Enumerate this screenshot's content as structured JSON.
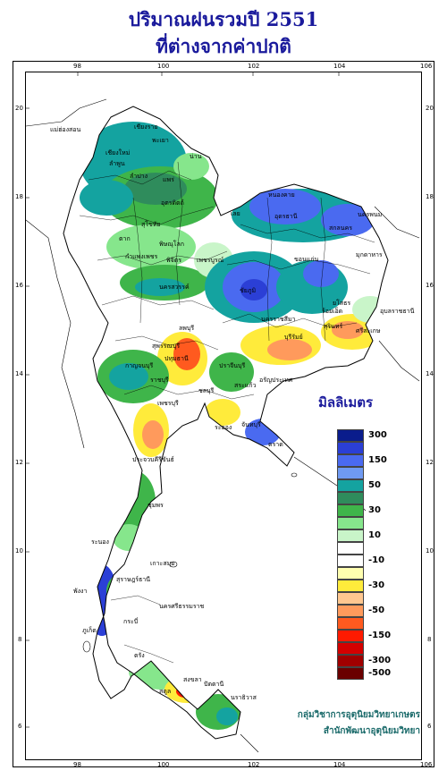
{
  "title_line1": "ปริมาณฝนรวมปี  2551",
  "title_line2": "ที่ต่างจากค่าปกติ",
  "legend": {
    "title": "มิลลิเมตร",
    "items": [
      {
        "color": "#0a1c8c",
        "label": "300"
      },
      {
        "color": "#2b3fd6",
        "label": ""
      },
      {
        "color": "#4a6af0",
        "label": "150"
      },
      {
        "color": "#6f9af2",
        "label": ""
      },
      {
        "color": "#14a3a0",
        "label": "50"
      },
      {
        "color": "#2f8c5c",
        "label": ""
      },
      {
        "color": "#3fb54a",
        "label": "30"
      },
      {
        "color": "#86e68c",
        "label": ""
      },
      {
        "color": "#c9f5c9",
        "label": "10"
      },
      {
        "color": "#ffffff",
        "label": ""
      },
      {
        "color": "#ffffff",
        "label": "-10"
      },
      {
        "color": "#ffffb0",
        "label": ""
      },
      {
        "color": "#ffeb3b",
        "label": "-30"
      },
      {
        "color": "#ffc790",
        "label": ""
      },
      {
        "color": "#ff9a5c",
        "label": "-50"
      },
      {
        "color": "#ff5a1f",
        "label": ""
      },
      {
        "color": "#ff1a00",
        "label": "-150"
      },
      {
        "color": "#d40000",
        "label": ""
      },
      {
        "color": "#a00000",
        "label": "-300"
      },
      {
        "color": "#6a0000",
        "label": "-500"
      }
    ]
  },
  "axes": {
    "x_ticks": [
      "98",
      "100",
      "102",
      "104",
      "106"
    ],
    "y_ticks": [
      "20",
      "18",
      "16",
      "14",
      "12",
      "10",
      "8",
      "6"
    ]
  },
  "credit_line1": "กลุ่มวิชาการอุตุนิยมวิทยาเกษตร",
  "credit_line2": "สำนักพัฒนาอุตุนิยมวิทยา",
  "places": [
    {
      "name": "เชียงราย"
    },
    {
      "name": "แม่ฮ่องสอน"
    },
    {
      "name": "เชียงใหม่"
    },
    {
      "name": "พะเยา"
    },
    {
      "name": "น่าน"
    },
    {
      "name": "ลำพูน"
    },
    {
      "name": "ลำปาง"
    },
    {
      "name": "แพร่"
    },
    {
      "name": "อุตรดิตถ์"
    },
    {
      "name": "ตาก"
    },
    {
      "name": "สุโขทัย"
    },
    {
      "name": "พิษณุโลก"
    },
    {
      "name": "หนองคาย"
    },
    {
      "name": "อุดรธานี"
    },
    {
      "name": "สกลนคร"
    },
    {
      "name": "นครพนม"
    },
    {
      "name": "เลย"
    },
    {
      "name": "มุกดาหาร"
    },
    {
      "name": "ขอนแก่น"
    },
    {
      "name": "ชัยภูมิ"
    },
    {
      "name": "กำแพงเพชร"
    },
    {
      "name": "พิจิตร"
    },
    {
      "name": "เพชรบูรณ์"
    },
    {
      "name": "นครสวรรค์"
    },
    {
      "name": "ยโสธร"
    },
    {
      "name": "อุบลราชธานี"
    },
    {
      "name": "นครราชสีมา"
    },
    {
      "name": "สุรินทร์"
    },
    {
      "name": "ลพบุรี"
    },
    {
      "name": "สุพรรณบุรี"
    },
    {
      "name": "กาญจนบุรี"
    },
    {
      "name": "ปทุมธานี"
    },
    {
      "name": "ราชบุรี"
    },
    {
      "name": "ปราจีนบุรี"
    },
    {
      "name": "สระแก้ว"
    },
    {
      "name": "ชลบุรี"
    },
    {
      "name": "เพชรบุรี"
    },
    {
      "name": "ระยอง"
    },
    {
      "name": "จันทบุรี"
    },
    {
      "name": "ประจวบคีรีขันธ์"
    },
    {
      "name": "ระนอง"
    },
    {
      "name": "สุราษฎร์ธานี"
    },
    {
      "name": "เกาะสมุย"
    },
    {
      "name": "พังงา"
    },
    {
      "name": "นครศรีธรรมราช"
    },
    {
      "name": "ภูเก็ต"
    },
    {
      "name": "กระบี่"
    },
    {
      "name": "ตรัง"
    },
    {
      "name": "สงขลา"
    },
    {
      "name": "ปัตตานี"
    },
    {
      "name": "นราธิวาส"
    },
    {
      "name": "สตูล"
    },
    {
      "name": "ชุมพร"
    },
    {
      "name": "อรัญประเทศ"
    },
    {
      "name": "บุรีรัมย์"
    },
    {
      "name": "ศรีสะเกษ"
    },
    {
      "name": "ร้อยเอ็ด"
    },
    {
      "name": "ตราด"
    }
  ]
}
